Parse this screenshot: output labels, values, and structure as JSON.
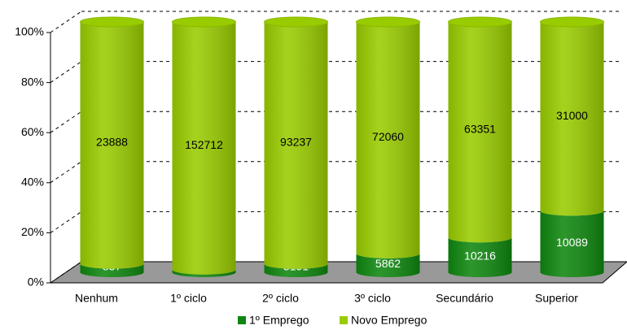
{
  "chart_data": {
    "type": "bar",
    "stacking": "percent",
    "categories": [
      "Nenhum",
      "1º ciclo",
      "2º ciclo",
      "3º ciclo",
      "Secundário",
      "Superior"
    ],
    "series": [
      {
        "name": "1º Emprego",
        "color": "#0f870f",
        "label_color": "#ffffff",
        "values": [
          837,
          1636,
          3191,
          5862,
          10216,
          10089
        ]
      },
      {
        "name": "Novo Emprego",
        "color": "#99cc00",
        "label_color": "#000000",
        "values": [
          23888,
          152712,
          93237,
          72060,
          63351,
          31000
        ]
      }
    ],
    "ylim": [
      0,
      100
    ],
    "yticks": [
      {
        "value": 0,
        "label": "0%"
      },
      {
        "value": 20,
        "label": "20%"
      },
      {
        "value": 40,
        "label": "40%"
      },
      {
        "value": 60,
        "label": "60%"
      },
      {
        "value": 80,
        "label": "80%"
      },
      {
        "value": 100,
        "label": "100%"
      }
    ],
    "grid": true,
    "legend": "bottom"
  }
}
